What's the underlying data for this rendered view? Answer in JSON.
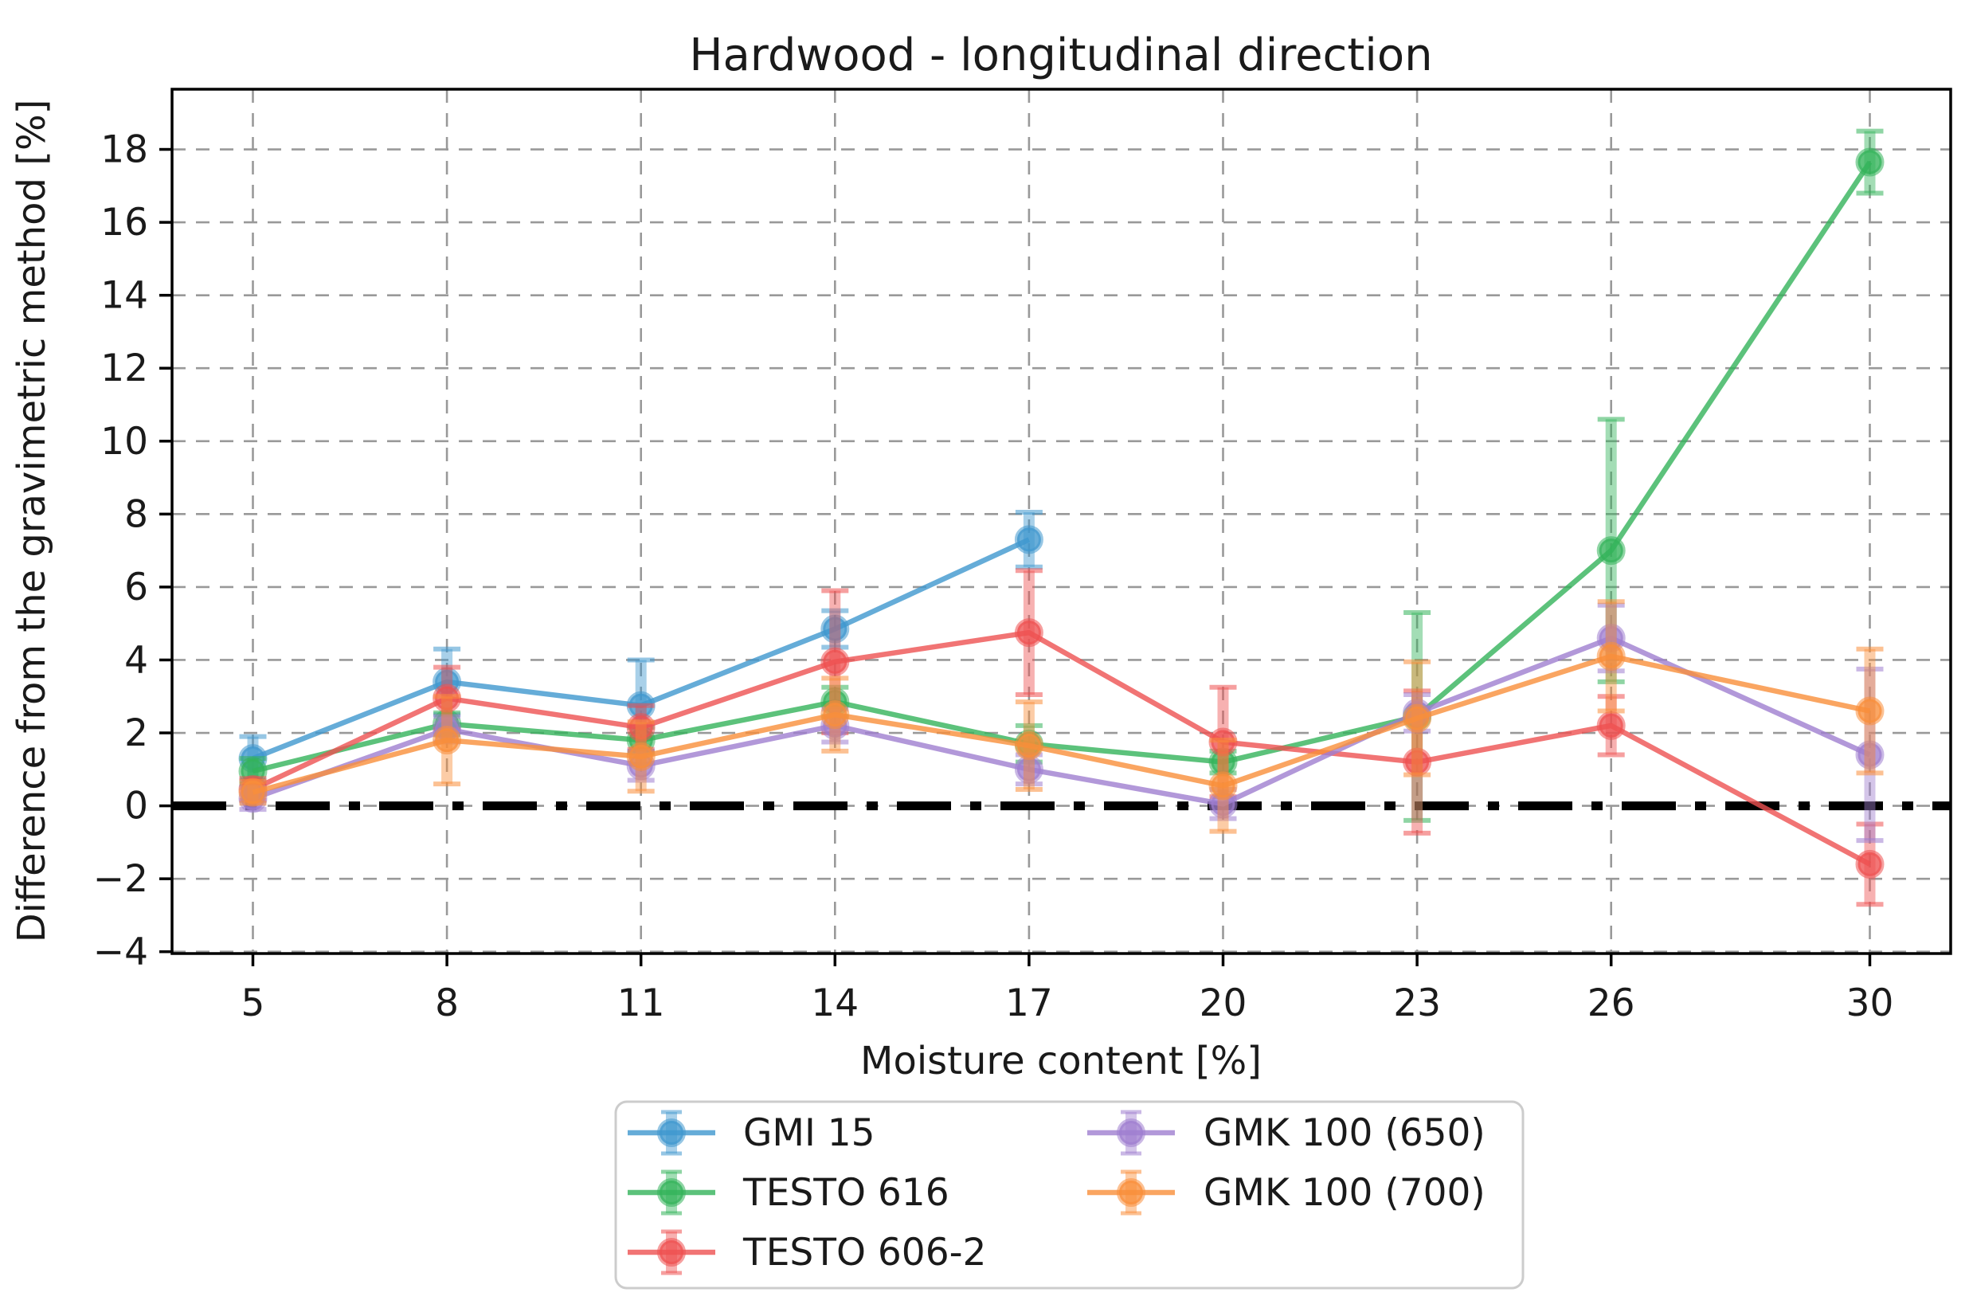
{
  "title": "Hardwood - longitudinal direction",
  "x_axis": {
    "label": "Moisture content  [%]",
    "tick_values": [
      5,
      8,
      11,
      14,
      17,
      20,
      23,
      26,
      30
    ],
    "tick_labels": [
      "5",
      "8",
      "11",
      "14",
      "17",
      "20",
      "23",
      "26",
      "30"
    ]
  },
  "y_axis": {
    "label": "Difference from the gravimetric method [%]",
    "tick_values": [
      -4,
      -2,
      0,
      2,
      4,
      6,
      8,
      10,
      12,
      14,
      16,
      18
    ],
    "tick_labels": [
      "−4",
      "−2",
      "0",
      "2",
      "4",
      "6",
      "8",
      "10",
      "12",
      "14",
      "16",
      "18"
    ]
  },
  "chart_data": {
    "type": "line",
    "x": [
      5,
      8,
      11,
      14,
      17,
      20,
      23,
      26,
      30
    ],
    "xlim": [
      3.75,
      31.25
    ],
    "ylim": [
      -4.05,
      19.65
    ],
    "grid": true,
    "baseline": 0,
    "legend_position": "bottom",
    "series": [
      {
        "name": "GMI 15",
        "color": "#3f97ce",
        "values": [
          1.3,
          3.4,
          2.75,
          4.85,
          7.3,
          null,
          null,
          null,
          null
        ],
        "errors": [
          0.6,
          0.9,
          1.25,
          0.5,
          0.75,
          null,
          null,
          null,
          null
        ]
      },
      {
        "name": "TESTO 616",
        "color": "#33b35a",
        "values": [
          0.95,
          2.25,
          1.8,
          2.85,
          1.7,
          1.2,
          2.45,
          7.0,
          17.65
        ],
        "errors": [
          0.35,
          0.3,
          0.35,
          0.4,
          0.5,
          0.3,
          2.85,
          3.6,
          0.85
        ]
      },
      {
        "name": "TESTO 606-2",
        "color": "#ee5151",
        "values": [
          0.45,
          2.95,
          2.15,
          3.95,
          4.75,
          1.75,
          1.2,
          2.2,
          -1.6
        ],
        "errors": [
          0.3,
          0.85,
          0.6,
          1.95,
          1.7,
          1.5,
          1.95,
          0.8,
          1.1
        ]
      },
      {
        "name": "GMK 100 (650)",
        "color": "#9f7ecf",
        "values": [
          0.2,
          2.1,
          1.1,
          2.2,
          1.0,
          0.05,
          2.55,
          4.6,
          1.4
        ],
        "errors": [
          0.3,
          0.35,
          0.4,
          0.45,
          0.4,
          0.4,
          0.5,
          0.9,
          2.35
        ]
      },
      {
        "name": "GMK 100 (700)",
        "color": "#f98e3a",
        "values": [
          0.37,
          1.8,
          1.35,
          2.5,
          1.65,
          0.55,
          2.4,
          4.1,
          2.6
        ],
        "errors": [
          0.3,
          1.2,
          0.95,
          1.0,
          1.2,
          1.25,
          1.55,
          1.5,
          1.7
        ]
      }
    ]
  },
  "legend": {
    "columns": 2,
    "column_split": 3,
    "items": [
      {
        "label": "GMI 15",
        "color": "#3f97ce"
      },
      {
        "label": "TESTO 616",
        "color": "#33b35a"
      },
      {
        "label": "TESTO 606-2",
        "color": "#ee5151"
      },
      {
        "label": "GMK 100 (650)",
        "color": "#9f7ecf"
      },
      {
        "label": "GMK 100 (700)",
        "color": "#f98e3a"
      }
    ]
  },
  "style_colors": {
    "grid": "#999999",
    "spine": "#000000",
    "baseline": "#000000",
    "legend_border": "#cccccc",
    "text": "#1a1a1a"
  }
}
